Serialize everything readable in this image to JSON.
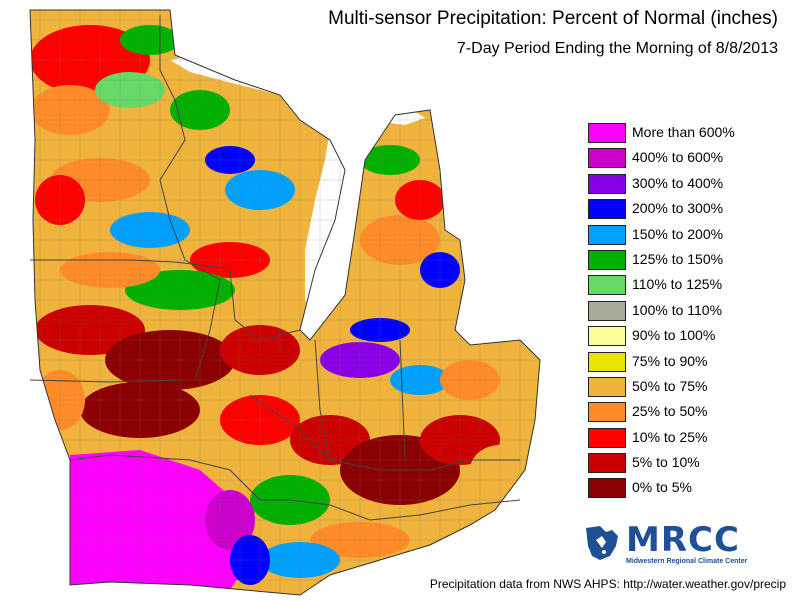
{
  "header": {
    "title": "Multi-sensor Precipitation: Percent of Normal (inches)",
    "subtitle": "7-Day Period Ending the Morning of 8/8/2013"
  },
  "legend": {
    "items": [
      {
        "label": "More than 600%",
        "color": "#ff00ff"
      },
      {
        "label": "400% to 600%",
        "color": "#cc00cc"
      },
      {
        "label": "300% to 400%",
        "color": "#8a00e6"
      },
      {
        "label": "200% to 300%",
        "color": "#0000ff"
      },
      {
        "label": "150% to 200%",
        "color": "#00a0ff"
      },
      {
        "label": "125% to 150%",
        "color": "#00b000"
      },
      {
        "label": "110% to 125%",
        "color": "#66d966"
      },
      {
        "label": "100% to 110%",
        "color": "#a8aa9a"
      },
      {
        "label": "90% to 100%",
        "color": "#ffff99"
      },
      {
        "label": "75% to 90%",
        "color": "#e6e600"
      },
      {
        "label": "50% to 75%",
        "color": "#f0b43c"
      },
      {
        "label": "25% to 50%",
        "color": "#ff8c28"
      },
      {
        "label": "10% to 25%",
        "color": "#ff0000"
      },
      {
        "label": "5% to 10%",
        "color": "#cc0000"
      },
      {
        "label": "0% to 5%",
        "color": "#8b0000"
      }
    ]
  },
  "logo": {
    "text": "MRCC",
    "subtext": "Midwestern Regional Climate Center",
    "color": "#1f4f95"
  },
  "footer": {
    "credit": "Precipitation data from NWS AHPS:  http://water.weather.gov/precip"
  },
  "map": {
    "region": "Midwest United States",
    "water_color": "#ffffff",
    "border_color": "#555555"
  }
}
